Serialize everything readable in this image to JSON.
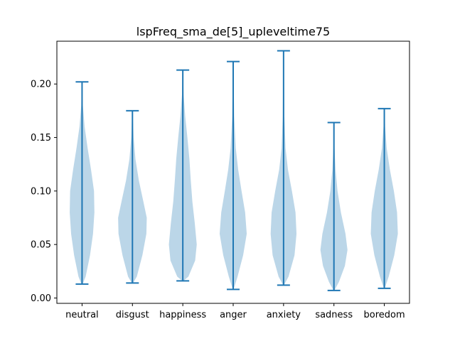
{
  "chart_data": {
    "type": "violin",
    "title": "lspFreq_sma_de[5]_upleveltime75",
    "xlabel": "",
    "ylabel": "",
    "ylim": [
      -0.005,
      0.24
    ],
    "yticks": [
      0.0,
      0.05,
      0.1,
      0.15,
      0.2
    ],
    "ytick_labels": [
      "0.00",
      "0.05",
      "0.10",
      "0.15",
      "0.20"
    ],
    "grid": false,
    "categories": [
      "neutral",
      "disgust",
      "happiness",
      "anger",
      "anxiety",
      "sadness",
      "boredom"
    ],
    "series": [
      {
        "category": "neutral",
        "min": 0.013,
        "max": 0.202,
        "density": [
          [
            0.013,
            0.03
          ],
          [
            0.02,
            0.18
          ],
          [
            0.04,
            0.4
          ],
          [
            0.06,
            0.55
          ],
          [
            0.08,
            0.62
          ],
          [
            0.1,
            0.6
          ],
          [
            0.12,
            0.45
          ],
          [
            0.14,
            0.28
          ],
          [
            0.16,
            0.13
          ],
          [
            0.18,
            0.04
          ],
          [
            0.202,
            0.01
          ]
        ]
      },
      {
        "category": "disgust",
        "min": 0.014,
        "max": 0.175,
        "density": [
          [
            0.014,
            0.03
          ],
          [
            0.02,
            0.22
          ],
          [
            0.04,
            0.5
          ],
          [
            0.06,
            0.7
          ],
          [
            0.075,
            0.72
          ],
          [
            0.09,
            0.55
          ],
          [
            0.11,
            0.32
          ],
          [
            0.13,
            0.15
          ],
          [
            0.15,
            0.06
          ],
          [
            0.175,
            0.01
          ]
        ]
      },
      {
        "category": "happiness",
        "min": 0.016,
        "max": 0.213,
        "density": [
          [
            0.016,
            0.03
          ],
          [
            0.02,
            0.28
          ],
          [
            0.035,
            0.62
          ],
          [
            0.05,
            0.7
          ],
          [
            0.07,
            0.6
          ],
          [
            0.09,
            0.48
          ],
          [
            0.11,
            0.4
          ],
          [
            0.13,
            0.33
          ],
          [
            0.15,
            0.23
          ],
          [
            0.17,
            0.12
          ],
          [
            0.19,
            0.04
          ],
          [
            0.213,
            0.01
          ]
        ]
      },
      {
        "category": "anger",
        "min": 0.008,
        "max": 0.221,
        "density": [
          [
            0.008,
            0.02
          ],
          [
            0.02,
            0.22
          ],
          [
            0.04,
            0.5
          ],
          [
            0.06,
            0.68
          ],
          [
            0.08,
            0.6
          ],
          [
            0.1,
            0.42
          ],
          [
            0.12,
            0.25
          ],
          [
            0.14,
            0.13
          ],
          [
            0.17,
            0.05
          ],
          [
            0.221,
            0.01
          ]
        ]
      },
      {
        "category": "anxiety",
        "min": 0.012,
        "max": 0.231,
        "density": [
          [
            0.012,
            0.02
          ],
          [
            0.02,
            0.25
          ],
          [
            0.04,
            0.55
          ],
          [
            0.06,
            0.65
          ],
          [
            0.08,
            0.6
          ],
          [
            0.1,
            0.42
          ],
          [
            0.12,
            0.22
          ],
          [
            0.14,
            0.1
          ],
          [
            0.17,
            0.04
          ],
          [
            0.231,
            0.01
          ]
        ]
      },
      {
        "category": "sadness",
        "min": 0.007,
        "max": 0.164,
        "density": [
          [
            0.007,
            0.02
          ],
          [
            0.015,
            0.25
          ],
          [
            0.03,
            0.55
          ],
          [
            0.045,
            0.68
          ],
          [
            0.06,
            0.58
          ],
          [
            0.08,
            0.35
          ],
          [
            0.1,
            0.18
          ],
          [
            0.12,
            0.08
          ],
          [
            0.14,
            0.03
          ],
          [
            0.164,
            0.01
          ]
        ]
      },
      {
        "category": "boredom",
        "min": 0.009,
        "max": 0.177,
        "density": [
          [
            0.009,
            0.02
          ],
          [
            0.02,
            0.22
          ],
          [
            0.04,
            0.5
          ],
          [
            0.06,
            0.68
          ],
          [
            0.08,
            0.64
          ],
          [
            0.1,
            0.48
          ],
          [
            0.12,
            0.28
          ],
          [
            0.14,
            0.12
          ],
          [
            0.16,
            0.04
          ],
          [
            0.177,
            0.01
          ]
        ]
      }
    ],
    "colors": {
      "body": "#1f77b4",
      "body_opacity": 0.3,
      "line": "#1f77b4"
    }
  }
}
